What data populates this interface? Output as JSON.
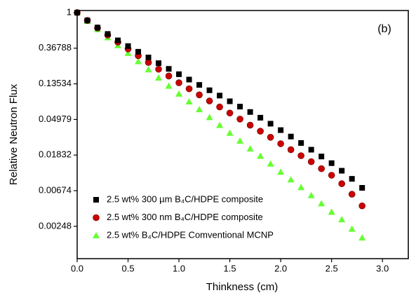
{
  "chart_data": {
    "type": "scatter",
    "annotation": "(b)",
    "x_label": "Thinkness (cm)",
    "y_label": "Relative Neutron Flux",
    "log_y": true,
    "x": [
      0,
      0.1,
      0.2,
      0.3,
      0.4,
      0.5,
      0.6,
      0.7,
      0.8,
      0.9,
      1.0,
      1.1,
      1.2,
      1.3,
      1.4,
      1.5,
      1.6,
      1.7,
      1.8,
      1.9,
      2.0,
      2.1,
      2.2,
      2.3,
      2.4,
      2.5,
      2.6,
      2.7,
      2.8
    ],
    "series": [
      {
        "name": "2.5 wt% 300 µm B₄C/HDPE composite",
        "color": "#000000",
        "marker": "square",
        "values": [
          1,
          0.8025,
          0.657,
          0.5488,
          0.4584,
          0.3906,
          0.3329,
          0.2837,
          0.2417,
          0.206,
          0.1773,
          0.1526,
          0.1313,
          0.113,
          0.0973,
          0.0829,
          0.0714,
          0.0614,
          0.0523,
          0.0442,
          0.0369,
          0.0308,
          0.0257,
          0.0213,
          0.0176,
          0.0146,
          0.0118,
          0.0094,
          0.0073
        ]
      },
      {
        "name": "2.5 wt% 300 nm B₄C/HDPE composite",
        "color": "#cc0000",
        "marker": "circle",
        "values": [
          1,
          0.8025,
          0.6505,
          0.5326,
          0.436,
          0.3606,
          0.2982,
          0.2466,
          0.2039,
          0.1686,
          0.1395,
          0.1177,
          0.0993,
          0.0837,
          0.0707,
          0.0596,
          0.0503,
          0.0424,
          0.0358,
          0.0302,
          0.0252,
          0.0213,
          0.018,
          0.0152,
          0.0125,
          0.0104,
          0.0082,
          0.0061,
          0.0044
        ]
      },
      {
        "name": "2.5 wt% B₄C/HDPE Comventional MCNP",
        "color": "#66ff33",
        "marker": "triangle",
        "values": [
          1,
          0.7866,
          0.6252,
          0.4966,
          0.3985,
          0.3198,
          0.2541,
          0.2019,
          0.1604,
          0.1275,
          0.1023,
          0.0821,
          0.0659,
          0.0529,
          0.0424,
          0.034,
          0.0273,
          0.0219,
          0.0178,
          0.0143,
          0.0114,
          0.0092,
          0.0074,
          0.0059,
          0.0047,
          0.0037,
          0.003,
          0.0023,
          0.0018
        ]
      }
    ],
    "xlim": [
      0,
      3.24
    ],
    "xticks": [
      {
        "value": 0,
        "label": "0.0"
      },
      {
        "value": 0.5,
        "label": "0.5"
      },
      {
        "value": 1,
        "label": "1.0"
      },
      {
        "value": 1.5,
        "label": "1.5"
      },
      {
        "value": 2,
        "label": "2.0"
      },
      {
        "value": 2.5,
        "label": "2.5"
      },
      {
        "value": 3,
        "label": "3.0"
      }
    ],
    "ylim": [
      0.001,
      1.06
    ],
    "yticks": [
      1,
      0.36788,
      0.13534,
      0.04979,
      0.01832,
      0.00674,
      0.00248
    ],
    "legend_position": "lower left"
  }
}
